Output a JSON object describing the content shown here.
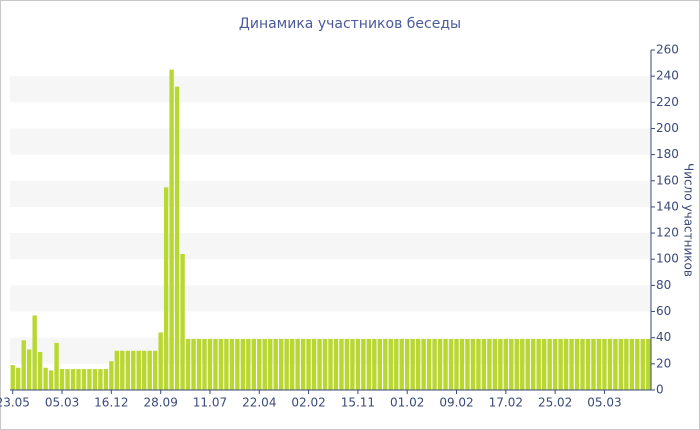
{
  "chart_data": {
    "type": "bar",
    "title": "Динамика участников беседы",
    "y_label": "Число участников",
    "color": "#b8d831",
    "categories": [
      "23.05",
      null,
      null,
      null,
      null,
      null,
      null,
      null,
      null,
      "05.03",
      null,
      null,
      null,
      null,
      null,
      null,
      null,
      null,
      "16.12",
      null,
      null,
      null,
      null,
      null,
      null,
      null,
      null,
      "28.09",
      null,
      null,
      null,
      null,
      null,
      null,
      null,
      null,
      "11.07",
      null,
      null,
      null,
      null,
      null,
      null,
      null,
      null,
      "22.04",
      null,
      null,
      null,
      null,
      null,
      null,
      null,
      null,
      "02.02",
      null,
      null,
      null,
      null,
      null,
      null,
      null,
      null,
      "15.11",
      null,
      null,
      null,
      null,
      null,
      null,
      null,
      null,
      "01.02",
      null,
      null,
      null,
      null,
      null,
      null,
      null,
      null,
      "09.02",
      null,
      null,
      null,
      null,
      null,
      null,
      null,
      null,
      "17.02",
      null,
      null,
      null,
      null,
      null,
      null,
      null,
      null,
      "25.02",
      null,
      null,
      null,
      null,
      null,
      null,
      null,
      null,
      "05.03",
      null,
      null,
      null,
      null,
      null,
      null,
      null,
      null
    ],
    "values": [
      19,
      17,
      38,
      31,
      57,
      29,
      17,
      15,
      36,
      16,
      16,
      16,
      16,
      16,
      16,
      16,
      16,
      16,
      22,
      30,
      30,
      30,
      30,
      30,
      30,
      30,
      30,
      44,
      155,
      245,
      232,
      104,
      39,
      39,
      39,
      39,
      39,
      39,
      39,
      39,
      39,
      39,
      39,
      39,
      39,
      39,
      39,
      39,
      39,
      39,
      39,
      39,
      39,
      39,
      39,
      39,
      39,
      39,
      39,
      39,
      39,
      39,
      39,
      39,
      39,
      39,
      39,
      39,
      39,
      39,
      39,
      39,
      39,
      39,
      39,
      39,
      39,
      39,
      39,
      39,
      39,
      39,
      39,
      39,
      39,
      39,
      39,
      39,
      39,
      39,
      39,
      39,
      39,
      39,
      39,
      39,
      39,
      39,
      39,
      39,
      39,
      39,
      39,
      39,
      39,
      39,
      39,
      39,
      39,
      39,
      39,
      39,
      39,
      39,
      39,
      39,
      39
    ],
    "ylim": [
      0,
      260
    ],
    "yticks": [
      0,
      20,
      40,
      60,
      80,
      100,
      120,
      140,
      160,
      180,
      200,
      220,
      240,
      260
    ],
    "grid": "bands",
    "y_axis_side": "right"
  }
}
